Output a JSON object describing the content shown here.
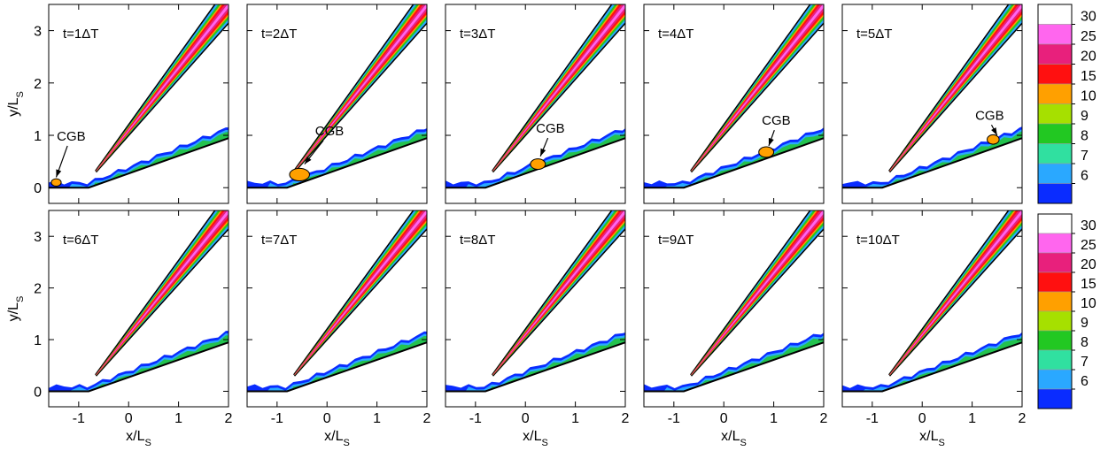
{
  "chart_data": [
    {
      "type": "contour",
      "title": "t=1ΔT",
      "annotation": "CGB",
      "xlim": [
        -1.6,
        2
      ],
      "ylim": [
        -0.3,
        3.5
      ],
      "xticks": [
        -1,
        0,
        1,
        2
      ],
      "yticks": [
        0,
        1,
        2,
        3
      ],
      "show_xtick_labels": false,
      "show_ytick_labels": true,
      "ylabel": [
        "y/L",
        "S"
      ]
    },
    {
      "type": "contour",
      "title": "t=2ΔT",
      "annotation": "CGB",
      "xlim": [
        -1.6,
        2
      ],
      "ylim": [
        -0.3,
        3.5
      ],
      "xticks": [
        -1,
        0,
        1,
        2
      ],
      "yticks": [
        0,
        1,
        2,
        3
      ],
      "show_xtick_labels": false,
      "show_ytick_labels": false
    },
    {
      "type": "contour",
      "title": "t=3ΔT",
      "annotation": "CGB",
      "xlim": [
        -1.6,
        2
      ],
      "ylim": [
        -0.3,
        3.5
      ],
      "xticks": [
        -1,
        0,
        1,
        2
      ],
      "yticks": [
        0,
        1,
        2,
        3
      ],
      "show_xtick_labels": false,
      "show_ytick_labels": false
    },
    {
      "type": "contour",
      "title": "t=4ΔT",
      "annotation": "CGB",
      "xlim": [
        -1.6,
        2
      ],
      "ylim": [
        -0.3,
        3.5
      ],
      "xticks": [
        -1,
        0,
        1,
        2
      ],
      "yticks": [
        0,
        1,
        2,
        3
      ],
      "show_xtick_labels": false,
      "show_ytick_labels": false
    },
    {
      "type": "contour",
      "title": "t=5ΔT",
      "annotation": "CGB",
      "xlim": [
        -1.6,
        2
      ],
      "ylim": [
        -0.3,
        3.5
      ],
      "xticks": [
        -1,
        0,
        1,
        2
      ],
      "yticks": [
        0,
        1,
        2,
        3
      ],
      "show_xtick_labels": false,
      "show_ytick_labels": false
    },
    {
      "type": "contour",
      "title": "t=6ΔT",
      "xlim": [
        -1.6,
        2
      ],
      "ylim": [
        -0.3,
        3.5
      ],
      "xticks": [
        -1,
        0,
        1,
        2
      ],
      "yticks": [
        0,
        1,
        2,
        3
      ],
      "show_xtick_labels": true,
      "show_ytick_labels": true,
      "xlabel": [
        "x/L",
        "S"
      ],
      "ylabel": [
        "y/L",
        "S"
      ]
    },
    {
      "type": "contour",
      "title": "t=7ΔT",
      "xlim": [
        -1.6,
        2
      ],
      "ylim": [
        -0.3,
        3.5
      ],
      "xticks": [
        -1,
        0,
        1,
        2
      ],
      "yticks": [
        0,
        1,
        2,
        3
      ],
      "show_xtick_labels": true,
      "show_ytick_labels": false,
      "xlabel": [
        "x/L",
        "S"
      ]
    },
    {
      "type": "contour",
      "title": "t=8ΔT",
      "xlim": [
        -1.6,
        2
      ],
      "ylim": [
        -0.3,
        3.5
      ],
      "xticks": [
        -1,
        0,
        1,
        2
      ],
      "yticks": [
        0,
        1,
        2,
        3
      ],
      "show_xtick_labels": true,
      "show_ytick_labels": false,
      "xlabel": [
        "x/L",
        "S"
      ]
    },
    {
      "type": "contour",
      "title": "t=9ΔT",
      "xlim": [
        -1.6,
        2
      ],
      "ylim": [
        -0.3,
        3.5
      ],
      "xticks": [
        -1,
        0,
        1,
        2
      ],
      "yticks": [
        0,
        1,
        2,
        3
      ],
      "show_xtick_labels": true,
      "show_ytick_labels": false,
      "xlabel": [
        "x/L",
        "S"
      ]
    },
    {
      "type": "contour",
      "title": "t=10ΔT",
      "xlim": [
        -1.6,
        2
      ],
      "ylim": [
        -0.3,
        3.5
      ],
      "xticks": [
        -1,
        0,
        1,
        2
      ],
      "yticks": [
        0,
        1,
        2,
        3
      ],
      "show_xtick_labels": true,
      "show_ytick_labels": false,
      "xlabel": [
        "x/L",
        "S"
      ]
    }
  ],
  "colorbars": [
    {
      "levels": [
        30,
        25,
        20,
        15,
        10,
        9,
        8,
        7,
        6
      ],
      "colors": [
        "#ffffff",
        "#ff66ee",
        "#e8207c",
        "#ff1010",
        "#ffa000",
        "#a6e000",
        "#22c822",
        "#30e0a0",
        "#2aa8ff",
        "#0a2cff"
      ]
    },
    {
      "levels": [
        30,
        25,
        20,
        15,
        10,
        9,
        8,
        7,
        6
      ],
      "colors": [
        "#ffffff",
        "#ff66ee",
        "#e8207c",
        "#ff1010",
        "#ffa000",
        "#a6e000",
        "#22c822",
        "#30e0a0",
        "#2aa8ff",
        "#0a2cff"
      ]
    }
  ]
}
